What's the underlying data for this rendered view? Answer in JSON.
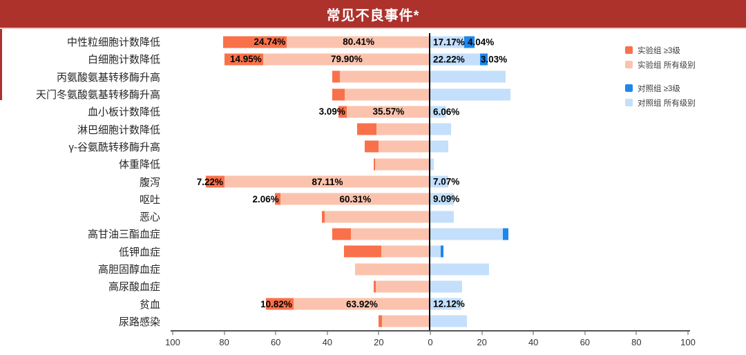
{
  "chart_data": {
    "type": "bar",
    "variant": "butterfly-tornado",
    "title": "常见不良事件*",
    "title_bg_color": "#AD322C",
    "axis": {
      "tick_labels": [
        "100",
        "80",
        "60",
        "40",
        "20",
        "0",
        "20",
        "40",
        "60",
        "80",
        "100"
      ],
      "left_max": 100,
      "right_max": 100,
      "grid": false
    },
    "colors": {
      "exp_ge3": "#F9714A",
      "exp_all": "#FBC3AE",
      "ctrl_ge3": "#1E87EA",
      "ctrl_all": "#C3DFFB"
    },
    "legend": [
      {
        "label": "实验组 ≥3级",
        "color": "#F9714A",
        "gap_before": false
      },
      {
        "label": "实验组 所有级别",
        "color": "#FBC3AE",
        "gap_before": false
      },
      {
        "label": "对照组 ≥3级",
        "color": "#1E87EA",
        "gap_before": true
      },
      {
        "label": "对照组 所有级别",
        "color": "#C3DFFB",
        "gap_before": false
      }
    ],
    "rows": [
      {
        "category": "中性粒细胞计数降低",
        "exp_ge3": 24.74,
        "exp_all": 80.41,
        "ctrl_ge3": 4.04,
        "ctrl_all": 17.17,
        "labels": {
          "exp_ge3": "24.74%",
          "exp_all": "80.41%",
          "ctrl_all": "17.17%",
          "ctrl_ge3": "4.04%"
        }
      },
      {
        "category": "白细胞计数降低",
        "exp_ge3": 14.95,
        "exp_all": 79.9,
        "ctrl_ge3": 3.03,
        "ctrl_all": 22.22,
        "labels": {
          "exp_ge3": "14.95%",
          "exp_all": "79.90%",
          "ctrl_all": "22.22%",
          "ctrl_ge3": "3.03%"
        }
      },
      {
        "category": "丙氨酸氨基转移酶升高",
        "exp_ge3": 3.0,
        "exp_all": 38.1,
        "ctrl_ge3": 0,
        "ctrl_all": 29.3,
        "labels": {}
      },
      {
        "category": "天门冬氨酸氨基转移酶升高",
        "exp_ge3": 4.8,
        "exp_all": 38.1,
        "ctrl_ge3": 0,
        "ctrl_all": 31.1,
        "labels": {}
      },
      {
        "category": "血小板计数降低",
        "exp_ge3": 3.09,
        "exp_all": 35.57,
        "ctrl_ge3": 0,
        "ctrl_all": 6.06,
        "labels": {
          "exp_ge3": "3.09%",
          "exp_all": "35.57%",
          "ctrl_all": "6.06%"
        }
      },
      {
        "category": "淋巴细胞计数降低",
        "exp_ge3": 7.5,
        "exp_all": 28.4,
        "ctrl_ge3": 0,
        "ctrl_all": 8.1,
        "labels": {}
      },
      {
        "category": "γ-谷氨酰转移酶升高",
        "exp_ge3": 5.3,
        "exp_all": 25.5,
        "ctrl_ge3": 0,
        "ctrl_all": 7.1,
        "labels": {}
      },
      {
        "category": "体重降低",
        "exp_ge3": 0.6,
        "exp_all": 22.0,
        "ctrl_ge3": 0,
        "ctrl_all": 1.3,
        "labels": {}
      },
      {
        "category": "腹泻",
        "exp_ge3": 7.22,
        "exp_all": 87.11,
        "ctrl_ge3": 0,
        "ctrl_all": 7.07,
        "labels": {
          "exp_ge3": "7.22%",
          "exp_all": "87.11%",
          "ctrl_all": "7.07%"
        }
      },
      {
        "category": "呕吐",
        "exp_ge3": 2.06,
        "exp_all": 60.31,
        "ctrl_ge3": 0,
        "ctrl_all": 9.09,
        "labels": {
          "exp_ge3": "2.06%",
          "exp_all": "60.31%",
          "ctrl_all": "9.09%"
        }
      },
      {
        "category": "恶心",
        "exp_ge3": 1.0,
        "exp_all": 42.1,
        "ctrl_ge3": 0,
        "ctrl_all": 9.2,
        "labels": {}
      },
      {
        "category": "高甘油三酯血症",
        "exp_ge3": 7.3,
        "exp_all": 38.1,
        "ctrl_ge3": 2.2,
        "ctrl_all": 30.3,
        "labels": {}
      },
      {
        "category": "低钾血症",
        "exp_ge3": 14.5,
        "exp_all": 33.5,
        "ctrl_ge3": 1.1,
        "ctrl_all": 5.1,
        "labels": {}
      },
      {
        "category": "高胆固醇血症",
        "exp_ge3": 0,
        "exp_all": 29.2,
        "ctrl_ge3": 0,
        "ctrl_all": 22.7,
        "labels": {}
      },
      {
        "category": "高尿酸血症",
        "exp_ge3": 0.8,
        "exp_all": 22.0,
        "ctrl_ge3": 0,
        "ctrl_all": 12.2,
        "labels": {}
      },
      {
        "category": "贫血",
        "exp_ge3": 10.82,
        "exp_all": 63.92,
        "ctrl_ge3": 0,
        "ctrl_all": 12.12,
        "labels": {
          "exp_ge3": "10.82%",
          "exp_all": "63.92%",
          "ctrl_all": "12.12%"
        }
      },
      {
        "category": "尿路感染",
        "exp_ge3": 1.3,
        "exp_all": 20.1,
        "ctrl_ge3": 0,
        "ctrl_all": 14.1,
        "labels": {}
      }
    ]
  }
}
